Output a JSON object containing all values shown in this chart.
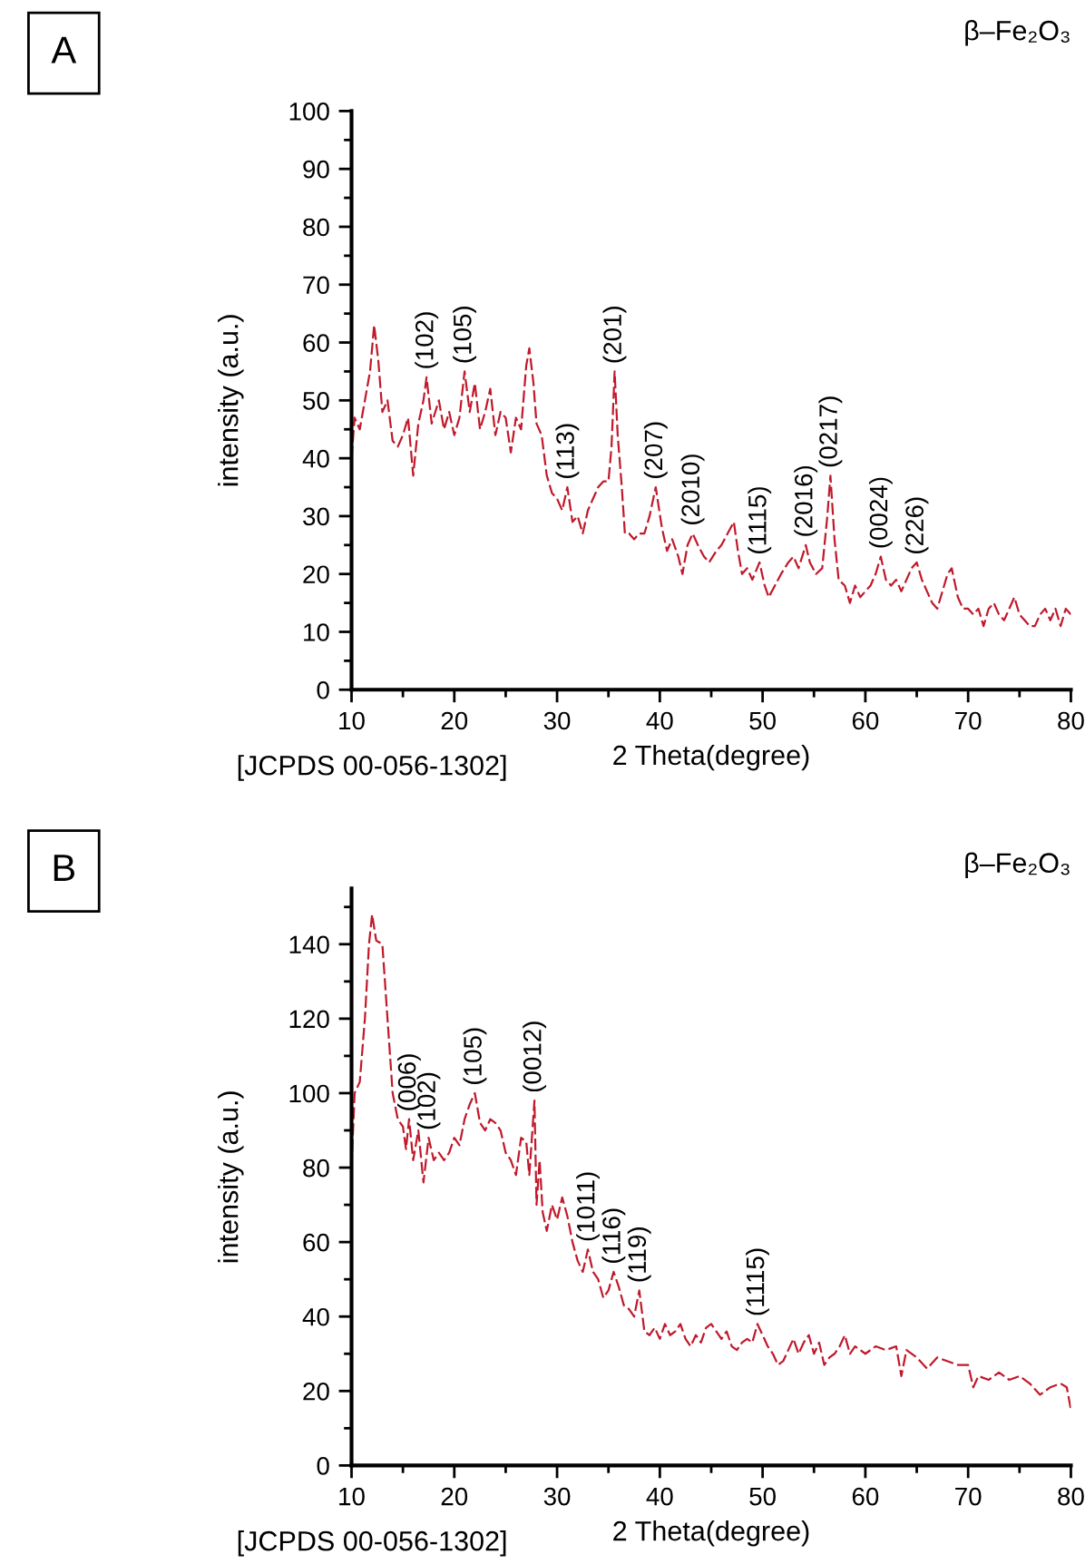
{
  "chart_data": [
    {
      "type": "line",
      "title": "β–Fe₂O₃",
      "xlabel": "2 Theta(degree)",
      "ylabel": "intensity (a.u.)",
      "line_style": "dashed",
      "grid": false,
      "xlim": [
        10,
        80
      ],
      "ylim": [
        0,
        100
      ],
      "xticks": [
        10,
        {
          "value": 15,
          "label": null
        },
        20,
        {
          "value": 25,
          "label": null
        },
        30,
        {
          "value": 35,
          "label": null
        },
        40,
        {
          "value": 45,
          "label": null
        },
        50,
        {
          "value": 55,
          "label": null
        },
        60,
        {
          "value": 65,
          "label": null
        },
        70,
        {
          "value": 75,
          "label": null
        },
        80
      ],
      "yticks": [
        0,
        {
          "value": 5,
          "label": null
        },
        10,
        {
          "value": 15,
          "label": null
        },
        20,
        {
          "value": 25,
          "label": null
        },
        30,
        {
          "value": 35,
          "label": null
        },
        40,
        {
          "value": 45,
          "label": null
        },
        50,
        {
          "value": 55,
          "label": null
        },
        60,
        {
          "value": 65,
          "label": null
        },
        70,
        {
          "value": 75,
          "label": null
        },
        80,
        {
          "value": 85,
          "label": null
        },
        90,
        {
          "value": 95,
          "label": null
        },
        100
      ],
      "annotations": [
        "A",
        "[JCPDS 00-056-1302]",
        {
          "text": "(102)",
          "x": 17.3,
          "y": 54
        },
        {
          "text": "(105)",
          "x": 21,
          "y": 55
        },
        {
          "text": "(113)",
          "x": 31,
          "y": 35
        },
        {
          "text": "(201)",
          "x": 35.6,
          "y": 55
        },
        {
          "text": "(207)",
          "x": 39.6,
          "y": 35
        },
        {
          "text": "(2010)",
          "x": 43.2,
          "y": 27
        },
        {
          "text": "(1115)",
          "x": 49.7,
          "y": 22
        },
        {
          "text": "(2016)",
          "x": 54.2,
          "y": 25
        },
        {
          "text": "(0217)",
          "x": 56.6,
          "y": 37
        },
        {
          "text": "(0024)",
          "x": 61.5,
          "y": 23
        },
        {
          "text": "(226)",
          "x": 65,
          "y": 22
        }
      ],
      "series": [
        {
          "color": "#c0192b",
          "x": [
            10,
            10.3,
            10.8,
            11.3,
            11.8,
            12.2,
            12.6,
            13,
            13.5,
            14,
            14.5,
            15,
            15.5,
            16,
            16.5,
            17,
            17.3,
            17.8,
            18.5,
            19,
            19.5,
            20,
            20.5,
            21,
            21.5,
            22,
            22.5,
            23,
            23.5,
            24,
            24.5,
            25,
            25.5,
            26,
            26.5,
            27,
            27.3,
            27.7,
            28,
            28.5,
            29,
            29.5,
            30,
            30.5,
            31,
            31.5,
            32,
            32.5,
            33,
            33.5,
            34,
            34.5,
            35,
            35.3,
            35.6,
            35.9,
            36.3,
            36.6,
            37,
            37.5,
            38,
            38.5,
            39,
            39.6,
            40.2,
            40.7,
            41.2,
            41.8,
            42.2,
            42.7,
            43.2,
            43.7,
            44.3,
            44.8,
            45.5,
            46,
            46.6,
            47.2,
            47.6,
            48,
            48.5,
            49,
            49.7,
            50.2,
            50.6,
            51.2,
            51.8,
            52.5,
            53,
            53.5,
            54.2,
            54.6,
            55.2,
            55.8,
            56.3,
            56.6,
            57,
            57.4,
            58,
            58.5,
            59,
            59.5,
            60,
            60.5,
            61,
            61.5,
            62,
            62.5,
            63,
            63.5,
            64,
            64.5,
            65,
            65.5,
            66,
            66.5,
            67,
            67.5,
            68,
            68.4,
            69,
            69.5,
            70,
            70.5,
            71,
            71.5,
            72,
            72.5,
            73,
            73.5,
            74,
            74.5,
            75,
            75.5,
            76,
            76.5,
            77,
            77.5,
            78,
            78.5,
            79,
            79.5,
            80
          ],
          "values": [
            40,
            47,
            45,
            50,
            55,
            63,
            57,
            48,
            50,
            43,
            42,
            44,
            47,
            37,
            46,
            50,
            54,
            46,
            50,
            45,
            48,
            44,
            47,
            55,
            48,
            53,
            45,
            48,
            52,
            44,
            48,
            47,
            41,
            47,
            45,
            56,
            59,
            53,
            46,
            44,
            37,
            34,
            33,
            31,
            35,
            29,
            30,
            27,
            31,
            33,
            35,
            36,
            36,
            42,
            55,
            44,
            35,
            27,
            27,
            26,
            27,
            27,
            30,
            35,
            28,
            24,
            26,
            23,
            20,
            25,
            27,
            25,
            23,
            22,
            24,
            25,
            27,
            29,
            24,
            20,
            21,
            19,
            22,
            18,
            16,
            18,
            20,
            22,
            23,
            21,
            25,
            22,
            20,
            21,
            30,
            37,
            26,
            19,
            18,
            15,
            18,
            16,
            17,
            18,
            20,
            23,
            19,
            18,
            19,
            17,
            19,
            21,
            22,
            19,
            17,
            15,
            14,
            17,
            20,
            21,
            16,
            14,
            14,
            13,
            14,
            11,
            14,
            15,
            13,
            12,
            14,
            16,
            13,
            12,
            11,
            11,
            13,
            14,
            12,
            14,
            11,
            14,
            13
          ]
        }
      ]
    },
    {
      "type": "line",
      "title": "β–Fe₂O₃",
      "xlabel": "2 Theta(degree)",
      "ylabel": "intensity (a.u.)",
      "line_style": "dashed",
      "grid": false,
      "xlim": [
        10,
        80
      ],
      "ylim": [
        0,
        155
      ],
      "xticks": [
        10,
        {
          "value": 15,
          "label": null
        },
        20,
        {
          "value": 25,
          "label": null
        },
        30,
        {
          "value": 35,
          "label": null
        },
        40,
        {
          "value": 45,
          "label": null
        },
        50,
        {
          "value": 55,
          "label": null
        },
        60,
        {
          "value": 65,
          "label": null
        },
        70,
        {
          "value": 75,
          "label": null
        },
        80
      ],
      "yticks": [
        0,
        {
          "value": 10,
          "label": null
        },
        20,
        {
          "value": 30,
          "label": null
        },
        40,
        {
          "value": 50,
          "label": null
        },
        60,
        {
          "value": 70,
          "label": null
        },
        80,
        {
          "value": 90,
          "label": null
        },
        100,
        {
          "value": 110,
          "label": null
        },
        120,
        {
          "value": 130,
          "label": null
        },
        140,
        {
          "value": 150,
          "label": null
        }
      ],
      "annotations": [
        "B",
        "[JCPDS 00-056-1302]",
        {
          "text": "(006)",
          "x": 15.6,
          "y": 93
        },
        {
          "text": "(102)",
          "x": 17.5,
          "y": 88
        },
        {
          "text": "(105)",
          "x": 22,
          "y": 100
        },
        {
          "text": "(0012)",
          "x": 27.8,
          "y": 98
        },
        {
          "text": "(1011)",
          "x": 33,
          "y": 58
        },
        {
          "text": "(116)",
          "x": 35.5,
          "y": 52
        },
        {
          "text": "(119)",
          "x": 38,
          "y": 47
        },
        {
          "text": "(1115)",
          "x": 49.5,
          "y": 38
        }
      ],
      "series": [
        {
          "color": "#c0192b",
          "x": [
            10,
            10.3,
            10.8,
            11.3,
            11.7,
            12,
            12.4,
            13,
            13.5,
            14,
            14.5,
            15,
            15.3,
            15.6,
            16,
            16.5,
            17,
            17.5,
            18,
            18.5,
            19,
            19.5,
            20,
            20.5,
            21,
            21.5,
            22,
            22.5,
            23,
            23.5,
            24,
            24.5,
            25,
            25.5,
            26,
            26.5,
            27,
            27.3,
            27.8,
            28,
            28.3,
            28.6,
            29,
            29.5,
            30,
            30.5,
            31,
            31.5,
            32,
            32.5,
            33,
            33.5,
            34,
            34.5,
            35,
            35.5,
            36,
            36.5,
            37,
            37.5,
            38,
            38.5,
            39,
            39.5,
            40,
            40.5,
            41,
            41.5,
            42,
            42.5,
            43,
            43.5,
            44,
            44.5,
            45,
            46,
            46.5,
            47,
            47.5,
            48,
            48.5,
            49,
            49.5,
            50,
            50.5,
            51,
            51.5,
            52,
            52.5,
            53,
            53.5,
            54,
            54.5,
            55,
            55.5,
            56,
            56.5,
            57,
            57.5,
            58,
            58.5,
            59,
            60,
            61,
            62,
            63,
            63.5,
            64,
            65,
            66,
            67,
            68,
            69,
            70,
            70.5,
            71,
            72,
            73,
            74,
            75,
            76,
            77,
            78,
            79,
            79.6,
            80
          ],
          "values": [
            80,
            100,
            103,
            120,
            140,
            148,
            141,
            140,
            120,
            100,
            93,
            91,
            85,
            93,
            82,
            90,
            76,
            88,
            82,
            84,
            82,
            84,
            88,
            86,
            93,
            97,
            100,
            92,
            90,
            93,
            92,
            90,
            84,
            82,
            78,
            88,
            87,
            78,
            98,
            70,
            82,
            68,
            63,
            70,
            66,
            72,
            67,
            60,
            55,
            52,
            58,
            52,
            50,
            45,
            47,
            52,
            48,
            43,
            42,
            40,
            47,
            36,
            35,
            37,
            34,
            38,
            35,
            36,
            38,
            34,
            32,
            35,
            33,
            37,
            38,
            34,
            36,
            32,
            31,
            33,
            34,
            33,
            38,
            35,
            32,
            30,
            27,
            28,
            31,
            34,
            30,
            33,
            35,
            30,
            33,
            27,
            29,
            30,
            32,
            35,
            30,
            32,
            30,
            32,
            31,
            32,
            24,
            31,
            29,
            26,
            29,
            28,
            27,
            27,
            21,
            24,
            23,
            25,
            23,
            24,
            22,
            19,
            21,
            22,
            21,
            15
          ]
        }
      ]
    }
  ]
}
